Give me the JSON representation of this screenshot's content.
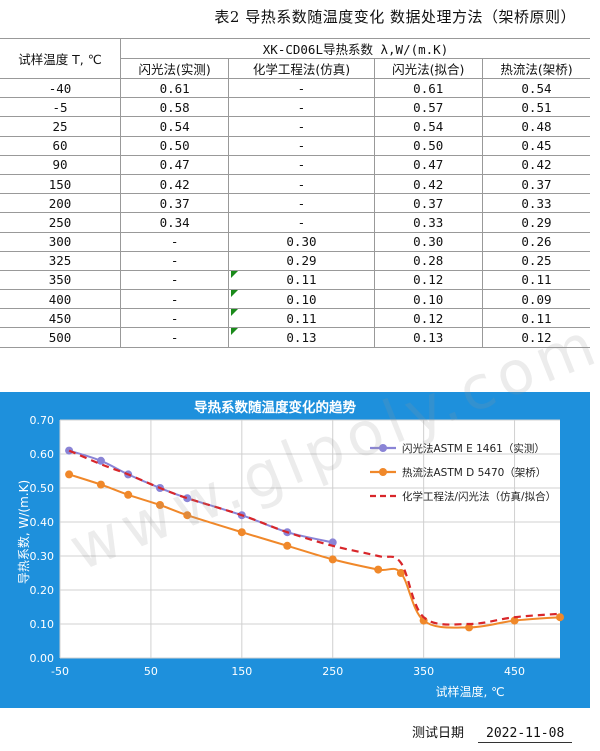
{
  "header": {
    "title": "表2  导热系数随温度变化 数据处理方法（架桥原则）"
  },
  "table": {
    "corner_label": "试样温度 T, ℃",
    "group_label": "XK-CD06L导热系数 λ,W/(m.K)",
    "columns": [
      "闪光法(实测)",
      "化学工程法(仿真)",
      "闪光法(拟合)",
      "热流法(架桥)"
    ],
    "rows": [
      {
        "t": "-40",
        "v": [
          "0.61",
          "-",
          "0.61",
          "0.54"
        ],
        "flag": false
      },
      {
        "t": "-5",
        "v": [
          "0.58",
          "-",
          "0.57",
          "0.51"
        ],
        "flag": false
      },
      {
        "t": "25",
        "v": [
          "0.54",
          "-",
          "0.54",
          "0.48"
        ],
        "flag": false
      },
      {
        "t": "60",
        "v": [
          "0.50",
          "-",
          "0.50",
          "0.45"
        ],
        "flag": false
      },
      {
        "t": "90",
        "v": [
          "0.47",
          "-",
          "0.47",
          "0.42"
        ],
        "flag": false
      },
      {
        "t": "150",
        "v": [
          "0.42",
          "-",
          "0.42",
          "0.37"
        ],
        "flag": false
      },
      {
        "t": "200",
        "v": [
          "0.37",
          "-",
          "0.37",
          "0.33"
        ],
        "flag": false
      },
      {
        "t": "250",
        "v": [
          "0.34",
          "-",
          "0.33",
          "0.29"
        ],
        "flag": false
      },
      {
        "t": "300",
        "v": [
          "-",
          "0.30",
          "0.30",
          "0.26"
        ],
        "flag": false
      },
      {
        "t": "325",
        "v": [
          "-",
          "0.29",
          "0.28",
          "0.25"
        ],
        "flag": false
      },
      {
        "t": "350",
        "v": [
          "-",
          "0.11",
          "0.12",
          "0.11"
        ],
        "flag": true
      },
      {
        "t": "400",
        "v": [
          "-",
          "0.10",
          "0.10",
          "0.09"
        ],
        "flag": true
      },
      {
        "t": "450",
        "v": [
          "-",
          "0.11",
          "0.12",
          "0.11"
        ],
        "flag": true
      },
      {
        "t": "500",
        "v": [
          "-",
          "0.13",
          "0.13",
          "0.12"
        ],
        "flag": true
      }
    ]
  },
  "chart_data": {
    "type": "line",
    "title": "导热系数随温度变化的趋势",
    "xlabel": "试样温度, ℃",
    "ylabel": "导热系数, W/(m.K)",
    "xlim": [
      -50,
      500
    ],
    "ylim": [
      0,
      0.7
    ],
    "x_ticks": [
      -50,
      50,
      150,
      250,
      350,
      450
    ],
    "x_tick_labels": [
      "-50",
      "50",
      "150",
      "250",
      "350",
      "450"
    ],
    "y_ticks": [
      0,
      0.1,
      0.2,
      0.3,
      0.4,
      0.5,
      0.6,
      0.7
    ],
    "y_tick_labels": [
      "0.00",
      "0.10",
      "0.20",
      "0.30",
      "0.40",
      "0.50",
      "0.60",
      "0.70"
    ],
    "grid": true,
    "legend_position": "top-right",
    "series": [
      {
        "name": "闪光法ASTM E 1461（实测）",
        "style": "line-marker",
        "color": "#8a84d6",
        "x": [
          -40,
          -5,
          25,
          60,
          90,
          150,
          200,
          250
        ],
        "y": [
          0.61,
          0.58,
          0.54,
          0.5,
          0.47,
          0.42,
          0.37,
          0.34
        ]
      },
      {
        "name": "热流法ASTM D 5470（架桥）",
        "style": "line-marker",
        "color": "#f0882a",
        "x": [
          -40,
          -5,
          25,
          60,
          90,
          150,
          200,
          250,
          300,
          325,
          350,
          400,
          450,
          500
        ],
        "y": [
          0.54,
          0.51,
          0.48,
          0.45,
          0.42,
          0.37,
          0.33,
          0.29,
          0.26,
          0.25,
          0.11,
          0.09,
          0.11,
          0.12
        ]
      },
      {
        "name": "化学工程法/闪光法（仿真/拟合）",
        "style": "dashed",
        "color": "#d8262a",
        "x": [
          -40,
          -5,
          25,
          60,
          90,
          150,
          200,
          250,
          300,
          325,
          350,
          400,
          450,
          500
        ],
        "y": [
          0.61,
          0.57,
          0.54,
          0.5,
          0.47,
          0.42,
          0.37,
          0.33,
          0.3,
          0.28,
          0.12,
          0.1,
          0.12,
          0.13
        ]
      }
    ]
  },
  "footer": {
    "date_label": "测试日期",
    "date_value": "2022-11-08"
  },
  "watermark": {
    "text": "www.glpoly.com.cn"
  },
  "colors": {
    "chart_bg": "#1e90dc",
    "plot_bg": "#ffffff",
    "flag": "#1a8a1a"
  }
}
